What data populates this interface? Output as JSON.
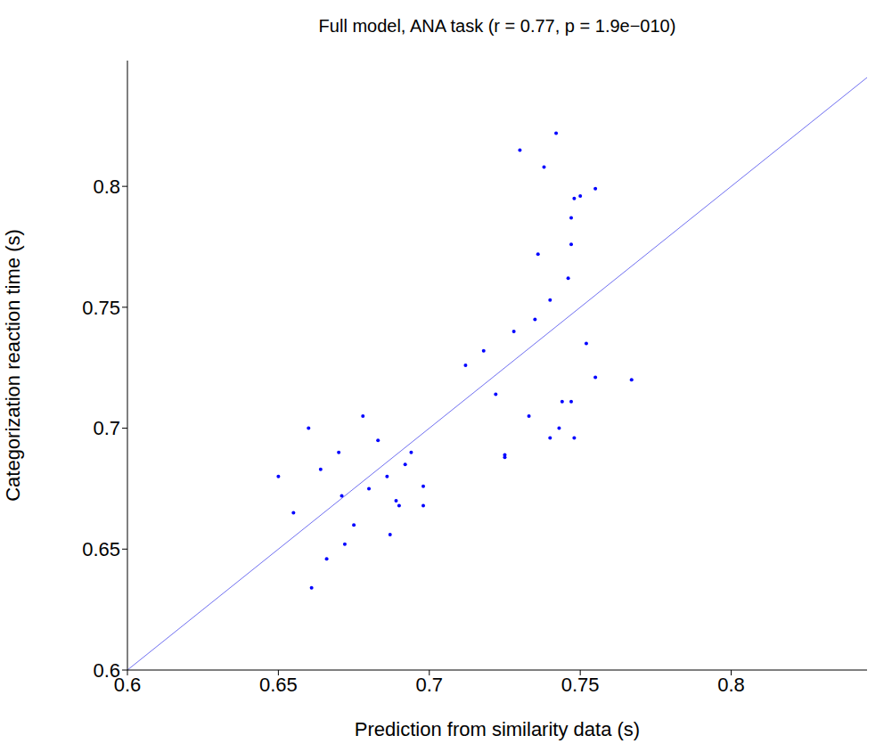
{
  "chart_data": {
    "type": "scatter",
    "title": "Full model, ANA task (r = 0.77, p = 1.9e−010)",
    "x_label": "Prediction from similarity data (s)",
    "y_label": "Categorization reaction time (s)",
    "x": [
      0.661,
      0.666,
      0.672,
      0.687,
      0.689,
      0.69,
      0.698,
      0.698,
      0.655,
      0.675,
      0.68,
      0.692,
      0.67,
      0.66,
      0.65,
      0.683,
      0.678,
      0.664,
      0.694,
      0.686,
      0.671,
      0.725,
      0.725,
      0.74,
      0.744,
      0.747,
      0.748,
      0.755,
      0.767,
      0.743,
      0.746,
      0.747,
      0.747,
      0.748,
      0.75,
      0.755,
      0.718,
      0.735,
      0.74,
      0.728,
      0.712,
      0.73,
      0.738,
      0.742,
      0.736,
      0.733,
      0.752,
      0.722
    ],
    "y": [
      0.634,
      0.646,
      0.652,
      0.656,
      0.67,
      0.668,
      0.676,
      0.668,
      0.665,
      0.66,
      0.675,
      0.685,
      0.69,
      0.7,
      0.68,
      0.695,
      0.705,
      0.683,
      0.69,
      0.68,
      0.672,
      0.689,
      0.688,
      0.696,
      0.711,
      0.711,
      0.696,
      0.721,
      0.72,
      0.7,
      0.762,
      0.776,
      0.787,
      0.795,
      0.796,
      0.799,
      0.732,
      0.745,
      0.753,
      0.74,
      0.726,
      0.815,
      0.808,
      0.822,
      0.772,
      0.705,
      0.735,
      0.714
    ],
    "color": "#0000ff",
    "marker": "dot",
    "xlim": [
      0.6,
      0.845
    ],
    "ylim": [
      0.6,
      0.852
    ],
    "xticks": [
      0.6,
      0.65,
      0.7,
      0.75,
      0.8
    ],
    "yticks": [
      0.6,
      0.65,
      0.7,
      0.75,
      0.8
    ],
    "reference_line": {
      "x": [
        0.6,
        0.85
      ],
      "y": [
        0.6,
        0.85
      ],
      "color": "#7070f0"
    }
  }
}
